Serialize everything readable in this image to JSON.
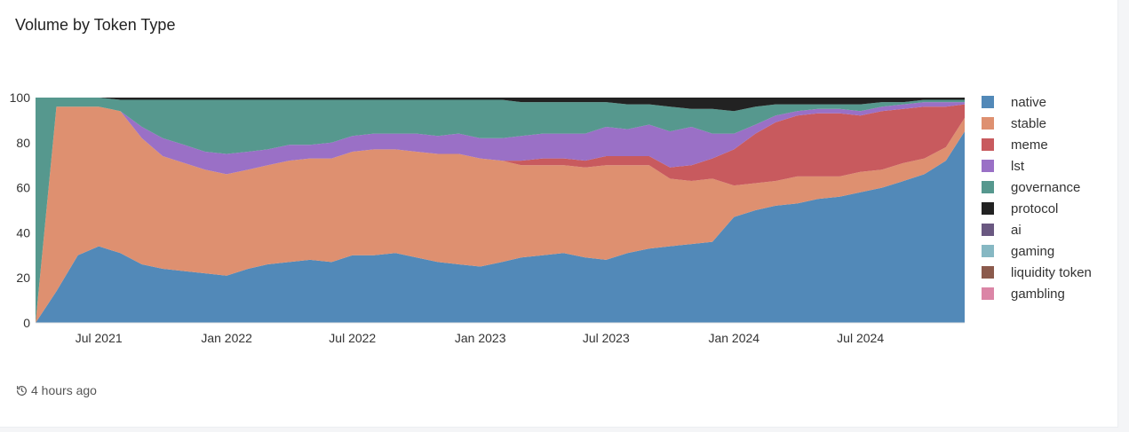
{
  "title": "Volume by Token Type",
  "footer": {
    "updated_text": "4 hours ago",
    "icon": "history-icon"
  },
  "chart_data": {
    "type": "area",
    "stacked": true,
    "normalized_percent": true,
    "ylim": [
      0,
      100
    ],
    "yticks": [
      0,
      20,
      40,
      60,
      80,
      100
    ],
    "xlim": [
      "2021-04-01",
      "2024-11-28"
    ],
    "xticks": [
      {
        "date": "2021-07-01",
        "label": "Jul 2021"
      },
      {
        "date": "2022-01-01",
        "label": "Jan 2022"
      },
      {
        "date": "2022-07-01",
        "label": "Jul 2022"
      },
      {
        "date": "2023-01-01",
        "label": "Jan 2023"
      },
      {
        "date": "2023-07-01",
        "label": "Jul 2023"
      },
      {
        "date": "2024-01-01",
        "label": "Jan 2024"
      },
      {
        "date": "2024-07-01",
        "label": "Jul 2024"
      }
    ],
    "legend_placement": "right",
    "grid": false,
    "x": [
      "2021-04-01",
      "2021-05-01",
      "2021-06-01",
      "2021-07-01",
      "2021-08-01",
      "2021-09-01",
      "2021-10-01",
      "2021-11-01",
      "2021-12-01",
      "2022-01-01",
      "2022-02-01",
      "2022-03-01",
      "2022-04-01",
      "2022-05-01",
      "2022-06-01",
      "2022-07-01",
      "2022-08-01",
      "2022-09-01",
      "2022-10-01",
      "2022-11-01",
      "2022-12-01",
      "2023-01-01",
      "2023-02-01",
      "2023-03-01",
      "2023-04-01",
      "2023-05-01",
      "2023-06-01",
      "2023-07-01",
      "2023-08-01",
      "2023-09-01",
      "2023-10-01",
      "2023-11-01",
      "2023-12-01",
      "2024-01-01",
      "2024-02-01",
      "2024-03-01",
      "2024-04-01",
      "2024-05-01",
      "2024-06-01",
      "2024-07-01",
      "2024-08-01",
      "2024-09-01",
      "2024-10-01",
      "2024-11-01",
      "2024-11-28"
    ],
    "series": [
      {
        "name": "native",
        "color": "#5289b8",
        "values": [
          0,
          14,
          30,
          34,
          31,
          26,
          24,
          23,
          22,
          21,
          24,
          26,
          27,
          28,
          27,
          30,
          30,
          31,
          29,
          27,
          26,
          25,
          27,
          29,
          30,
          31,
          29,
          28,
          31,
          33,
          34,
          35,
          36,
          47,
          50,
          52,
          53,
          55,
          56,
          58,
          60,
          63,
          66,
          72,
          85
        ]
      },
      {
        "name": "stable",
        "color": "#de9070",
        "values": [
          0,
          82,
          66,
          62,
          63,
          56,
          50,
          48,
          46,
          45,
          44,
          44,
          45,
          45,
          46,
          46,
          47,
          46,
          47,
          48,
          49,
          48,
          45,
          41,
          40,
          39,
          40,
          42,
          39,
          37,
          30,
          28,
          28,
          14,
          12,
          11,
          12,
          10,
          9,
          9,
          8,
          8,
          7,
          6,
          6
        ]
      },
      {
        "name": "meme",
        "color": "#c85a5e",
        "values": [
          0,
          0,
          0,
          0,
          0,
          0,
          0,
          0,
          0,
          0,
          0,
          0,
          0,
          0,
          0,
          0,
          0,
          0,
          0,
          0,
          0,
          0,
          0,
          2,
          3,
          3,
          3,
          4,
          4,
          4,
          5,
          7,
          9,
          16,
          22,
          26,
          27,
          28,
          28,
          25,
          26,
          24,
          23,
          18,
          6
        ]
      },
      {
        "name": "lst",
        "color": "#9a70c6",
        "values": [
          0,
          0,
          0,
          0,
          0,
          5,
          8,
          8,
          8,
          9,
          8,
          7,
          7,
          6,
          7,
          7,
          7,
          7,
          8,
          8,
          9,
          9,
          10,
          11,
          11,
          11,
          12,
          13,
          12,
          14,
          16,
          17,
          11,
          7,
          4,
          3,
          2,
          2,
          2,
          2,
          2,
          2,
          2,
          2,
          1
        ]
      },
      {
        "name": "governance",
        "color": "#56988e",
        "values": [
          100,
          4,
          4,
          4,
          5,
          12,
          17,
          20,
          23,
          24,
          23,
          22,
          20,
          20,
          19,
          16,
          15,
          15,
          15,
          16,
          15,
          17,
          17,
          15,
          14,
          14,
          14,
          11,
          11,
          9,
          11,
          8,
          11,
          10,
          8,
          5,
          3,
          2,
          2,
          3,
          2,
          1,
          1,
          1,
          1
        ]
      },
      {
        "name": "protocol",
        "color": "#222222",
        "values": [
          0,
          0,
          0,
          0,
          1,
          1,
          1,
          1,
          1,
          1,
          1,
          1,
          1,
          1,
          1,
          1,
          1,
          1,
          1,
          1,
          1,
          1,
          1,
          2,
          2,
          2,
          2,
          2,
          3,
          3,
          4,
          5,
          5,
          6,
          4,
          3,
          3,
          3,
          3,
          3,
          2,
          2,
          1,
          1,
          1
        ]
      },
      {
        "name": "ai",
        "color": "#6a5881",
        "values": [
          0,
          0,
          0,
          0,
          0,
          0,
          0,
          0,
          0,
          0,
          0,
          0,
          0,
          0,
          0,
          0,
          0,
          0,
          0,
          0,
          0,
          0,
          0,
          0,
          0,
          0,
          0,
          0,
          0,
          0,
          0,
          0,
          0,
          0,
          0,
          0,
          0,
          0,
          0,
          0,
          0,
          0,
          0,
          0,
          0
        ]
      },
      {
        "name": "gaming",
        "color": "#86b8c3",
        "values": [
          0,
          0,
          0,
          0,
          0,
          0,
          0,
          0,
          0,
          0,
          0,
          0,
          0,
          0,
          0,
          0,
          0,
          0,
          0,
          0,
          0,
          0,
          0,
          0,
          0,
          0,
          0,
          0,
          0,
          0,
          0,
          0,
          0,
          0,
          0,
          0,
          0,
          0,
          0,
          0,
          0,
          0,
          0,
          0,
          0
        ]
      },
      {
        "name": "liquidity token",
        "color": "#8b5a4c",
        "values": [
          0,
          0,
          0,
          0,
          0,
          0,
          0,
          0,
          0,
          0,
          0,
          0,
          0,
          0,
          0,
          0,
          0,
          0,
          0,
          0,
          0,
          0,
          0,
          0,
          0,
          0,
          0,
          0,
          0,
          0,
          0,
          0,
          0,
          0,
          0,
          0,
          0,
          0,
          0,
          0,
          0,
          0,
          0,
          0,
          0
        ]
      },
      {
        "name": "gambling",
        "color": "#db85a6",
        "values": [
          0,
          0,
          0,
          0,
          0,
          0,
          0,
          0,
          0,
          0,
          0,
          0,
          0,
          0,
          0,
          0,
          0,
          0,
          0,
          0,
          0,
          0,
          0,
          0,
          0,
          0,
          0,
          0,
          0,
          0,
          0,
          0,
          0,
          0,
          0,
          0,
          0,
          0,
          0,
          0,
          0,
          0,
          0,
          0,
          0
        ]
      }
    ]
  }
}
